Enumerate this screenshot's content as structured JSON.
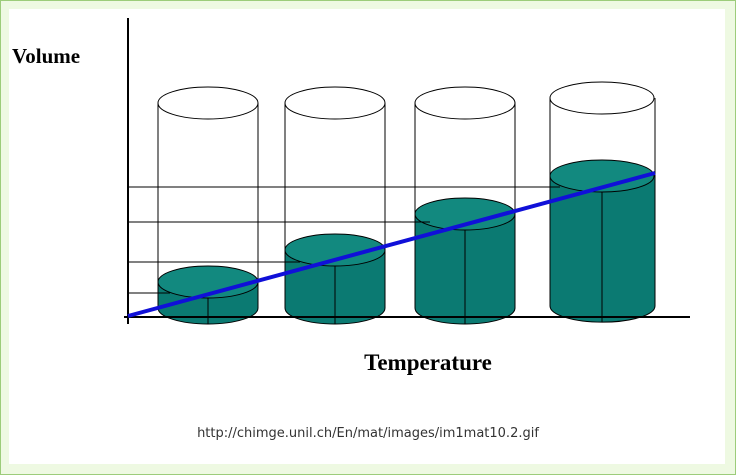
{
  "diagram": {
    "y_axis_label": "Volume",
    "x_axis_label": "Temperature"
  },
  "caption": "http://chimge.unil.ch/En/mat/images/im1mat10.2.gif"
}
